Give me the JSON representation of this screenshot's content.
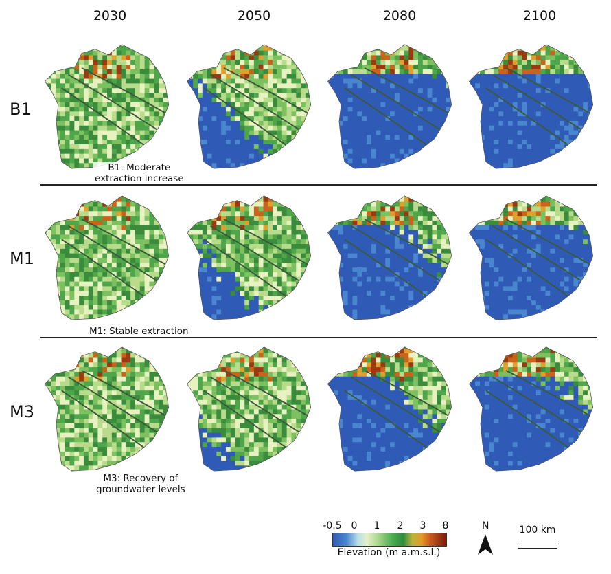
{
  "years": [
    "2030",
    "2050",
    "2080",
    "2100"
  ],
  "scenarios": [
    {
      "code": "B1",
      "description_line1": "B1: Moderate",
      "description_line2": "extraction increase",
      "flood": [
        0.12,
        0.45,
        0.85,
        0.95
      ]
    },
    {
      "code": "M1",
      "description_line1": "M1: Stable extraction",
      "description_line2": "",
      "flood": [
        0.1,
        0.4,
        0.72,
        0.85
      ]
    },
    {
      "code": "M3",
      "description_line1": "M3: Recovery of",
      "description_line2": "groundwater levels",
      "flood": [
        0.08,
        0.3,
        0.65,
        0.75
      ]
    }
  ],
  "legend": {
    "title": "Elevation (m a.m.s.l.)",
    "ticks": [
      "-0.5",
      "0",
      "1",
      "2",
      "3",
      "8"
    ],
    "colors": [
      "#2f5bb6",
      "#b8dfe8",
      "#a9d68c",
      "#2e8b3e",
      "#e59a2b",
      "#7a1a0c"
    ]
  },
  "north_label": "N",
  "scale_label": "100 km"
}
